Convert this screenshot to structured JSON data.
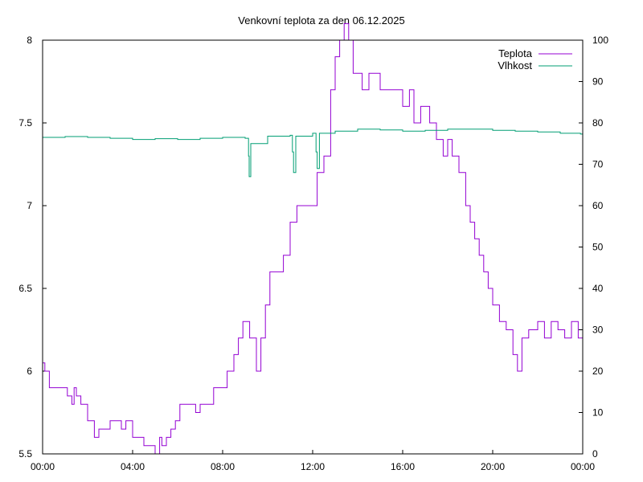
{
  "chart_data": {
    "type": "line",
    "title": "Venkovní teplota za den 06.12.2025",
    "xlabel": "",
    "ylabel": "",
    "y2label": "",
    "x_ticks": [
      "00:00",
      "04:00",
      "08:00",
      "12:00",
      "16:00",
      "20:00",
      "00:00"
    ],
    "x_range_hours": [
      0,
      24
    ],
    "y_ticks": [
      "5.5",
      "6",
      "6.5",
      "7",
      "7.5",
      "8"
    ],
    "ylim": [
      5.5,
      8
    ],
    "y2_ticks": [
      "0",
      "10",
      "20",
      "30",
      "40",
      "50",
      "60",
      "70",
      "80",
      "90",
      "100"
    ],
    "y2lim": [
      0,
      100
    ],
    "grid": false,
    "legend_position": "top-right",
    "series": [
      {
        "name": "Teplota",
        "axis": "left",
        "color": "#9400d3",
        "x": [
          0.0,
          0.1,
          0.3,
          1.0,
          1.1,
          1.3,
          1.4,
          1.5,
          1.7,
          2.0,
          2.3,
          2.5,
          3.0,
          3.2,
          3.5,
          3.7,
          4.0,
          4.3,
          4.5,
          4.8,
          5.0,
          5.2,
          5.3,
          5.5,
          5.7,
          5.9,
          6.1,
          6.5,
          6.8,
          7.0,
          7.3,
          7.6,
          7.9,
          8.2,
          8.5,
          8.7,
          8.9,
          9.2,
          9.5,
          9.7,
          9.9,
          10.1,
          10.4,
          10.7,
          11.0,
          11.3,
          11.6,
          12.0,
          12.2,
          12.5,
          12.8,
          13.0,
          13.2,
          13.4,
          13.6,
          13.8,
          14.0,
          14.2,
          14.5,
          15.0,
          15.5,
          16.0,
          16.3,
          16.5,
          16.8,
          17.0,
          17.2,
          17.5,
          17.8,
          18.0,
          18.2,
          18.5,
          18.8,
          19.0,
          19.2,
          19.4,
          19.6,
          19.8,
          20.0,
          20.3,
          20.6,
          20.9,
          21.1,
          21.3,
          21.6,
          22.0,
          22.3,
          22.6,
          22.9,
          23.2,
          23.5,
          23.8,
          24.0
        ],
        "values": [
          6.05,
          6.0,
          5.9,
          5.9,
          5.85,
          5.8,
          5.9,
          5.85,
          5.8,
          5.7,
          5.6,
          5.65,
          5.7,
          5.7,
          5.65,
          5.7,
          5.6,
          5.6,
          5.55,
          5.55,
          5.5,
          5.6,
          5.55,
          5.6,
          5.65,
          5.7,
          5.8,
          5.8,
          5.75,
          5.8,
          5.8,
          5.9,
          5.9,
          6.0,
          6.1,
          6.2,
          6.3,
          6.2,
          6.0,
          6.2,
          6.4,
          6.6,
          6.6,
          6.7,
          6.9,
          7.0,
          7.0,
          7.0,
          7.2,
          7.3,
          7.7,
          7.9,
          8.0,
          8.1,
          8.0,
          7.8,
          7.8,
          7.7,
          7.8,
          7.7,
          7.7,
          7.6,
          7.7,
          7.5,
          7.6,
          7.6,
          7.5,
          7.4,
          7.3,
          7.4,
          7.3,
          7.2,
          7.0,
          6.9,
          6.8,
          6.7,
          6.6,
          6.5,
          6.4,
          6.3,
          6.25,
          6.1,
          6.0,
          6.2,
          6.25,
          6.3,
          6.2,
          6.3,
          6.25,
          6.2,
          6.3,
          6.2,
          6.1
        ]
      },
      {
        "name": "Vlhkost",
        "axis": "right",
        "color": "#009e73",
        "x": [
          0.0,
          1.0,
          2.0,
          3.0,
          4.0,
          5.0,
          6.0,
          7.0,
          8.0,
          9.0,
          9.15,
          9.18,
          9.25,
          10.0,
          11.0,
          11.1,
          11.15,
          11.25,
          12.0,
          12.15,
          12.2,
          12.3,
          13.0,
          14.0,
          15.0,
          16.0,
          17.0,
          18.0,
          19.0,
          20.0,
          21.0,
          22.0,
          23.0,
          23.9,
          24.0
        ],
        "values": [
          76.5,
          76.7,
          76.5,
          76.3,
          76.0,
          76.2,
          76.0,
          76.3,
          76.5,
          76.3,
          72.0,
          67.0,
          75.0,
          76.8,
          77.0,
          73.0,
          68.0,
          76.8,
          77.5,
          73.0,
          69.0,
          77.5,
          78.0,
          78.5,
          78.3,
          78.0,
          78.2,
          78.5,
          78.5,
          78.2,
          78.0,
          77.8,
          77.5,
          77.3,
          77.0
        ]
      }
    ]
  }
}
